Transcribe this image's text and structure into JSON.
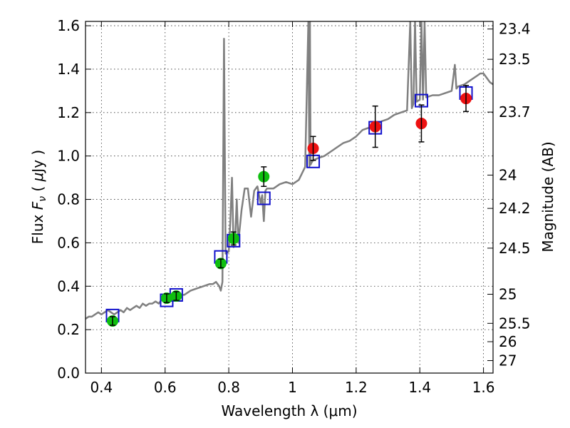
{
  "chart_data": {
    "type": "scatter",
    "xlabel": "Wavelength  λ (μm)",
    "ylabel": "Flux  F_ν  ( μJy )",
    "ylabel_parts": {
      "prefix": "Flux  ",
      "var": "F",
      "sub": "ν",
      "open": "  ( ",
      "mu": "μ",
      "unit": "Jy )"
    },
    "y2label": "Magnitude (AB)",
    "xlim": [
      0.35,
      1.63
    ],
    "ylim": [
      0.0,
      1.62
    ],
    "grid": true,
    "x_ticks": [
      {
        "value": 0.4,
        "label": "0.4"
      },
      {
        "value": 0.6,
        "label": "0.6"
      },
      {
        "value": 0.8,
        "label": "0.8"
      },
      {
        "value": 1.0,
        "label": "1"
      },
      {
        "value": 1.2,
        "label": "1.2"
      },
      {
        "value": 1.4,
        "label": "1.4"
      },
      {
        "value": 1.6,
        "label": "1.6"
      }
    ],
    "y_ticks": [
      {
        "value": 0.0,
        "label": "0.0"
      },
      {
        "value": 0.2,
        "label": "0.2"
      },
      {
        "value": 0.4,
        "label": "0.4"
      },
      {
        "value": 0.6,
        "label": "0.6"
      },
      {
        "value": 0.8,
        "label": "0.8"
      },
      {
        "value": 1.0,
        "label": "1.0"
      },
      {
        "value": 1.2,
        "label": "1.2"
      },
      {
        "value": 1.4,
        "label": "1.4"
      },
      {
        "value": 1.6,
        "label": "1.6"
      }
    ],
    "mag_ticks": [
      {
        "value": 23.4,
        "label": "23.4"
      },
      {
        "value": 23.5,
        "label": "23.5"
      },
      {
        "value": 23.7,
        "label": "23.7"
      },
      {
        "value": 24.0,
        "label": "24"
      },
      {
        "value": 24.2,
        "label": "24.2"
      },
      {
        "value": 24.5,
        "label": "24.5"
      },
      {
        "value": 25.0,
        "label": "25"
      },
      {
        "value": 25.5,
        "label": "25.5"
      },
      {
        "value": 26.0,
        "label": "26"
      },
      {
        "value": 27.0,
        "label": "27"
      }
    ],
    "colors": {
      "spectrum": "#808080",
      "green": "#0fbf0f",
      "red": "#ee1111",
      "model": "#1010cc",
      "error": "#000000"
    },
    "series": [
      {
        "name": "spectrum",
        "kind": "line",
        "x": [
          0.35,
          0.36,
          0.37,
          0.38,
          0.39,
          0.4,
          0.41,
          0.42,
          0.43,
          0.44,
          0.45,
          0.46,
          0.47,
          0.48,
          0.49,
          0.5,
          0.51,
          0.52,
          0.53,
          0.54,
          0.55,
          0.56,
          0.57,
          0.58,
          0.59,
          0.6,
          0.62,
          0.64,
          0.66,
          0.68,
          0.7,
          0.72,
          0.74,
          0.75,
          0.76,
          0.77,
          0.775,
          0.78,
          0.785,
          0.79,
          0.8,
          0.805,
          0.81,
          0.815,
          0.82,
          0.825,
          0.83,
          0.84,
          0.85,
          0.86,
          0.87,
          0.88,
          0.89,
          0.9,
          0.905,
          0.91,
          0.915,
          0.92,
          0.94,
          0.96,
          0.98,
          1.0,
          1.02,
          1.04,
          1.05,
          1.053,
          1.055,
          1.057,
          1.06,
          1.065,
          1.08,
          1.1,
          1.12,
          1.14,
          1.16,
          1.18,
          1.2,
          1.22,
          1.24,
          1.26,
          1.28,
          1.3,
          1.32,
          1.34,
          1.36,
          1.37,
          1.375,
          1.38,
          1.385,
          1.39,
          1.4,
          1.405,
          1.41,
          1.415,
          1.42,
          1.44,
          1.46,
          1.48,
          1.5,
          1.51,
          1.515,
          1.52,
          1.54,
          1.56,
          1.58,
          1.59,
          1.6,
          1.61,
          1.62,
          1.63
        ],
        "y": [
          0.25,
          0.26,
          0.26,
          0.27,
          0.28,
          0.27,
          0.28,
          0.29,
          0.28,
          0.27,
          0.28,
          0.29,
          0.28,
          0.3,
          0.29,
          0.3,
          0.31,
          0.3,
          0.32,
          0.31,
          0.32,
          0.32,
          0.33,
          0.32,
          0.34,
          0.33,
          0.35,
          0.36,
          0.36,
          0.38,
          0.39,
          0.4,
          0.41,
          0.41,
          0.42,
          0.4,
          0.38,
          0.42,
          1.54,
          0.55,
          0.56,
          0.7,
          0.9,
          0.58,
          0.62,
          0.8,
          0.6,
          0.75,
          0.85,
          0.85,
          0.72,
          0.84,
          0.86,
          0.78,
          0.82,
          0.7,
          0.84,
          0.85,
          0.85,
          0.87,
          0.88,
          0.87,
          0.89,
          0.95,
          1.62,
          0.95,
          1.62,
          0.96,
          0.97,
          0.98,
          0.99,
          1.0,
          1.02,
          1.04,
          1.06,
          1.07,
          1.09,
          1.12,
          1.13,
          1.14,
          1.16,
          1.17,
          1.19,
          1.2,
          1.21,
          1.62,
          1.22,
          1.24,
          1.62,
          1.25,
          1.26,
          1.62,
          1.26,
          1.62,
          1.27,
          1.28,
          1.28,
          1.29,
          1.3,
          1.42,
          1.31,
          1.32,
          1.33,
          1.35,
          1.37,
          1.38,
          1.38,
          1.36,
          1.34,
          1.33
        ]
      },
      {
        "name": "model",
        "kind": "open-square",
        "x": [
          0.435,
          0.605,
          0.635,
          0.775,
          0.815,
          0.91,
          1.065,
          1.26,
          1.405,
          1.545
        ],
        "y": [
          0.265,
          0.335,
          0.36,
          0.535,
          0.61,
          0.805,
          0.975,
          1.13,
          1.255,
          1.29
        ]
      },
      {
        "name": "green",
        "kind": "filled-circle",
        "x": [
          0.435,
          0.605,
          0.635,
          0.775,
          0.815,
          0.91
        ],
        "y": [
          0.24,
          0.345,
          0.355,
          0.505,
          0.62,
          0.905
        ],
        "err": [
          0.02,
          0.02,
          0.02,
          0.02,
          0.03,
          0.045
        ]
      },
      {
        "name": "red",
        "kind": "filled-circle",
        "x": [
          1.065,
          1.26,
          1.405,
          1.545
        ],
        "y": [
          1.035,
          1.135,
          1.15,
          1.265
        ],
        "err": [
          0.055,
          0.095,
          0.085,
          0.06
        ]
      }
    ]
  }
}
